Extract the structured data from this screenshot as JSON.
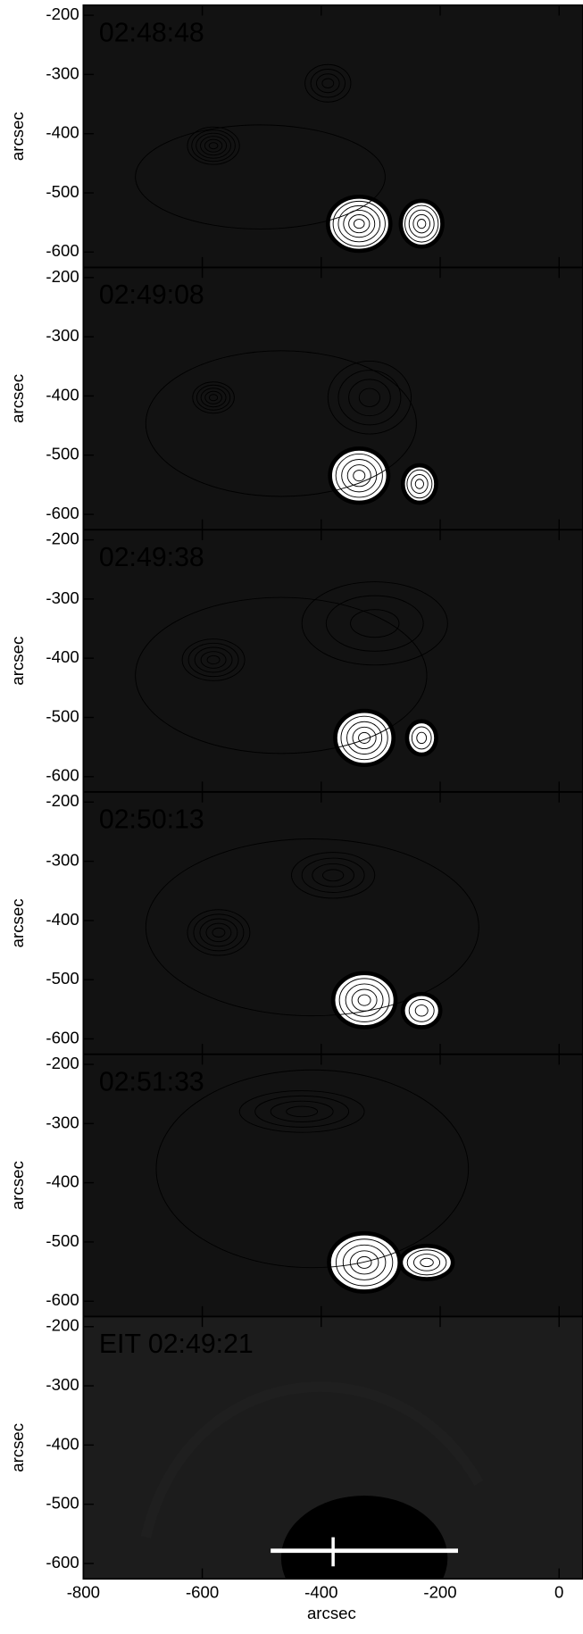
{
  "chart_data": [
    {
      "type": "image",
      "label": "02:48:48",
      "ylabel": "arcsec",
      "ylim": [
        -626,
        -183
      ],
      "yticks": [
        -200,
        -300,
        -400,
        -500,
        -600
      ]
    },
    {
      "type": "image",
      "label": "02:49:08",
      "ylabel": "arcsec",
      "ylim": [
        -626,
        -183
      ],
      "yticks": [
        -200,
        -300,
        -400,
        -500,
        -600
      ]
    },
    {
      "type": "image",
      "label": "02:49:38",
      "ylabel": "arcsec",
      "ylim": [
        -626,
        -183
      ],
      "yticks": [
        -200,
        -300,
        -400,
        -500,
        -600
      ]
    },
    {
      "type": "image",
      "label": "02:50:13",
      "ylabel": "arcsec",
      "ylim": [
        -626,
        -183
      ],
      "yticks": [
        -200,
        -300,
        -400,
        -500,
        -600
      ]
    },
    {
      "type": "image",
      "label": "02:51:33",
      "ylabel": "arcsec",
      "ylim": [
        -626,
        -183
      ],
      "yticks": [
        -200,
        -300,
        -400,
        -500,
        -600
      ]
    },
    {
      "type": "image",
      "label": "EIT 02:49:21",
      "ylabel": "arcsec",
      "xlabel": "arcsec",
      "ylim": [
        -626,
        -183
      ],
      "yticks": [
        -200,
        -300,
        -400,
        -500,
        -600
      ],
      "xlim": [
        -800,
        40
      ],
      "xticks": [
        -800,
        -600,
        -400,
        -200,
        0
      ]
    }
  ]
}
